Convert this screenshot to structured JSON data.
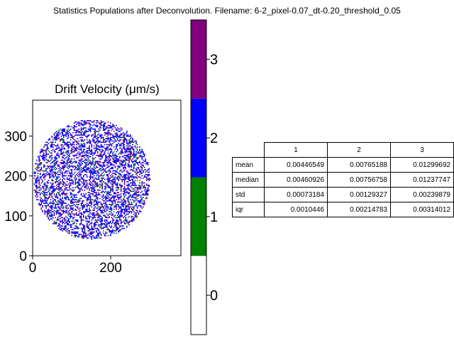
{
  "figure": {
    "suptitle": "Statistics Populations after Deconvolution. Filename: 6-2_pixel-0.07_dt-0.20_threshold_0.05"
  },
  "chart_data": [
    {
      "type": "heatmap",
      "title": "Drift Velocity (μm/s)",
      "xlabel": "",
      "ylabel": "",
      "xlim": [
        0,
        380
      ],
      "ylim": [
        0,
        390
      ],
      "x_ticks": [
        0,
        200
      ],
      "y_ticks": [
        0,
        100,
        200,
        300
      ],
      "grid": false,
      "description_values": {
        "shape": "circular cluster map",
        "center": [
          150,
          190
        ],
        "radius": 150,
        "population_labels": [
          0,
          1,
          2,
          3
        ]
      },
      "colorbar": {
        "ticks": [
          0,
          1,
          2,
          3
        ],
        "colors": [
          "#ffffff",
          "#008000",
          "#0000ff",
          "#800080"
        ],
        "range": [
          -0.5,
          3.5
        ]
      }
    },
    {
      "type": "table",
      "columns": [
        "1",
        "2",
        "3"
      ],
      "rows": [
        {
          "label": "mean",
          "values": [
            "0.00446549",
            "0.00765188",
            "0.01299692"
          ]
        },
        {
          "label": "median",
          "values": [
            "0.00460926",
            "0.00756758",
            "0.01237747"
          ]
        },
        {
          "label": "std",
          "values": [
            "0.00073184",
            "0.00129327",
            "0.00239879"
          ]
        },
        {
          "label": "iqr",
          "values": [
            "0.0010446",
            "0.00214783",
            "0.00314012"
          ]
        }
      ]
    }
  ]
}
